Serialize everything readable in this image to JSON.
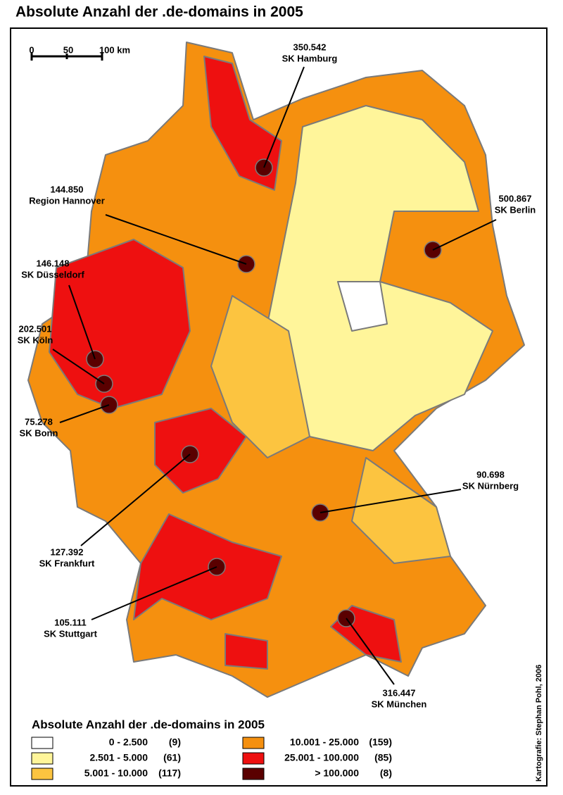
{
  "title": "Absolute Anzahl der .de-domains in 2005",
  "scale_bar": {
    "labels": [
      "0",
      "50",
      "100 km"
    ]
  },
  "callouts": [
    {
      "value": "350.542",
      "label": "SK Hamburg"
    },
    {
      "value": "144.850",
      "label": "Region Hannover"
    },
    {
      "value": "500.867",
      "label": "SK Berlin"
    },
    {
      "value": "146.148",
      "label": "SK Düsseldorf"
    },
    {
      "value": "202.501",
      "label": "SK Köln"
    },
    {
      "value": "75.278",
      "label": "SK Bonn"
    },
    {
      "value": "90.698",
      "label": "SK Nürnberg"
    },
    {
      "value": "127.392",
      "label": "SK Frankfurt"
    },
    {
      "value": "105.111",
      "label": "SK Stuttgart"
    },
    {
      "value": "316.447",
      "label": "SK München"
    }
  ],
  "legend": {
    "title": "Absolute Anzahl der .de-domains in 2005",
    "items": [
      {
        "range": "0 -   2.500",
        "count": "(9)",
        "color": "#ffffff"
      },
      {
        "range": "2.501 -   5.000",
        "count": "(61)",
        "color": "#fff59a"
      },
      {
        "range": "5.001 -  10.000",
        "count": "(117)",
        "color": "#fcc440"
      },
      {
        "range": "10.001 -  25.000",
        "count": "(159)",
        "color": "#f5900f"
      },
      {
        "range": "25.001 - 100.000",
        "count": "(85)",
        "color": "#ee1010"
      },
      {
        "range": "> 100.000",
        "count": "(8)",
        "color": "#5a0000"
      }
    ]
  },
  "credit": "Kartografie: Stephan Pohl, 2006"
}
